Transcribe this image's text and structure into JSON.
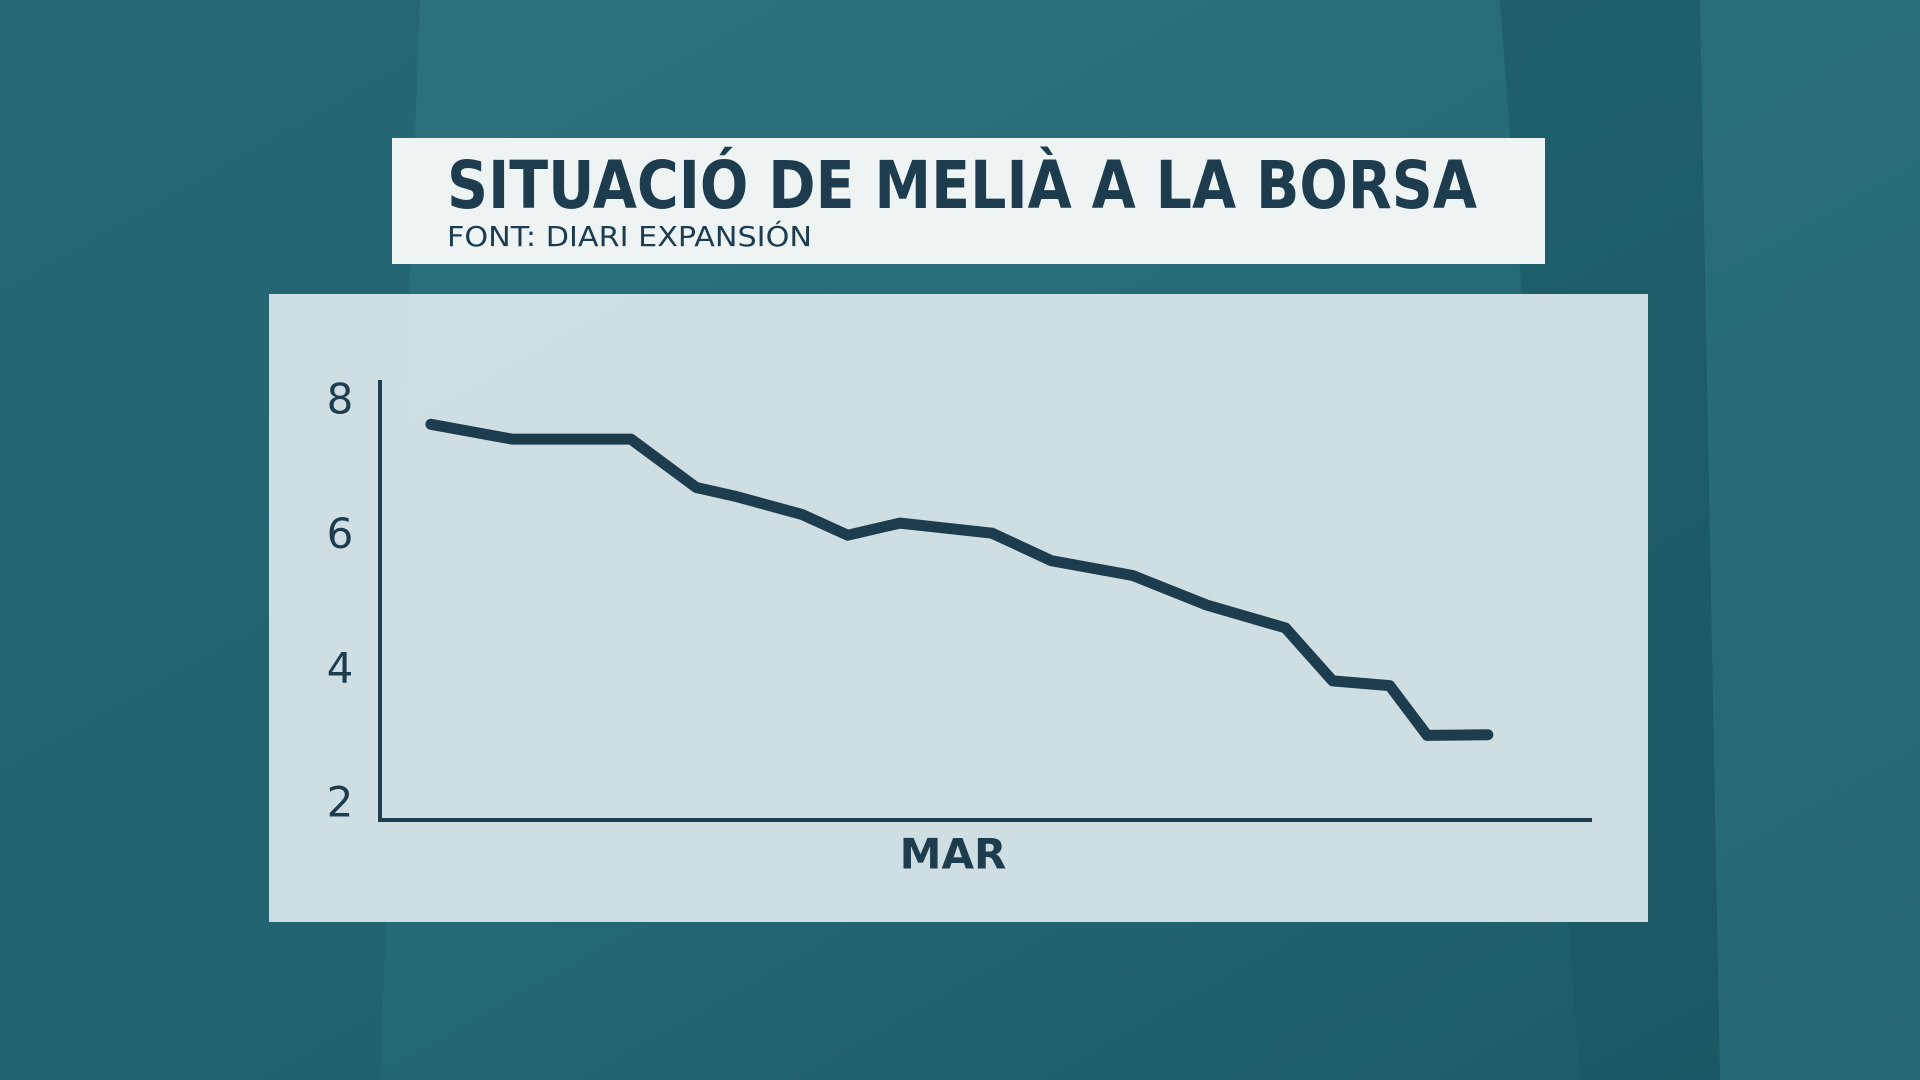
{
  "chart_data": {
    "type": "line",
    "title": "SITUACIÓ DE MELIÀ A LA BORSA",
    "subtitle": "FONT: DIARI EXPANSIÓN",
    "x_label": "MAR",
    "x": [
      4.2,
      10.9,
      20.7,
      26.1,
      29.3,
      34.8,
      38.6,
      42.9,
      50.5,
      55.4,
      62.1,
      68.2,
      74.7,
      78.6,
      83.3,
      86.4,
      91.4
    ],
    "values": [
      7.67,
      7.45,
      7.45,
      6.73,
      6.6,
      6.33,
      6.02,
      6.2,
      6.05,
      5.64,
      5.42,
      4.98,
      4.64,
      3.85,
      3.78,
      3.04,
      3.05
    ],
    "color": "#1d3d4f",
    "xlim": [
      0,
      100
    ],
    "ylim": [
      1.78,
      8.33
    ],
    "yticks": [
      2,
      4,
      6,
      8
    ]
  }
}
